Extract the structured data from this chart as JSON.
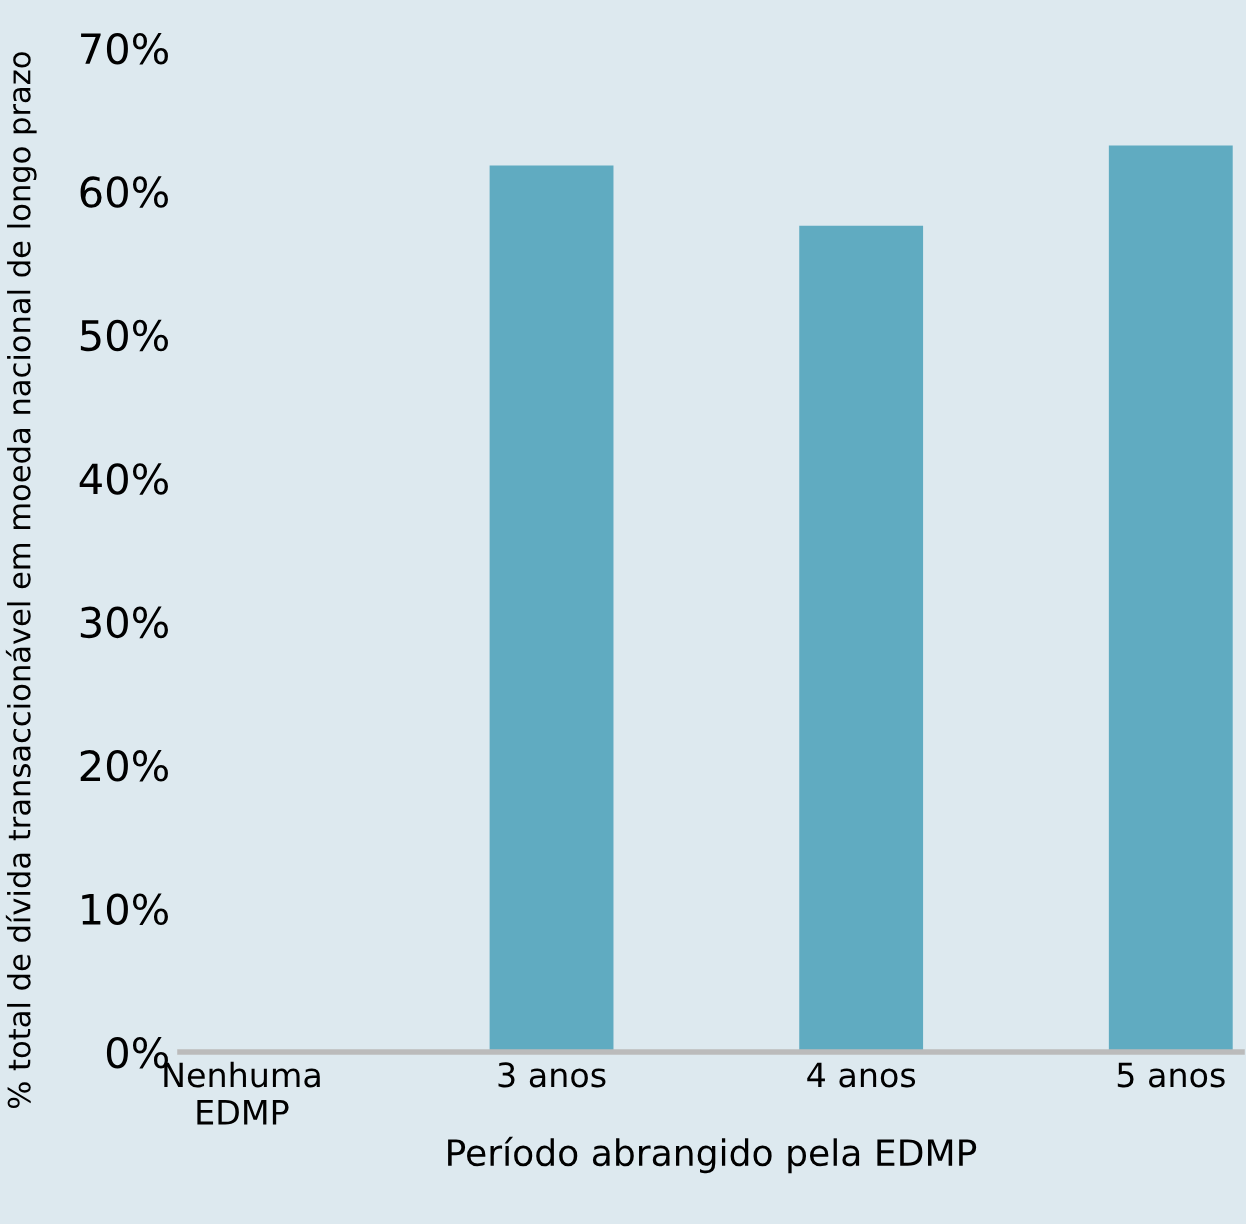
{
  "chart_data": {
    "type": "bar",
    "xlabel": "Período abrangido pela EDMP",
    "ylabel": "% total de dívida transaccionável em moeda nacional de longo prazo",
    "categories": [
      "Nenhuma\nEDMP",
      "3 anos",
      "4 anos",
      "5 anos"
    ],
    "values": [
      0,
      61.8,
      57.6,
      63.2
    ],
    "color": "#60abc1",
    "ylim": [
      0,
      70
    ],
    "yticks": [
      {
        "value": 0,
        "label": "0%"
      },
      {
        "value": 10,
        "label": "10%"
      },
      {
        "value": 20,
        "label": "20%"
      },
      {
        "value": 30,
        "label": "30%"
      },
      {
        "value": 40,
        "label": "40%"
      },
      {
        "value": 50,
        "label": "50%"
      },
      {
        "value": 60,
        "label": "60%"
      },
      {
        "value": 70,
        "label": "70%"
      }
    ],
    "grid": false,
    "legend": false
  }
}
